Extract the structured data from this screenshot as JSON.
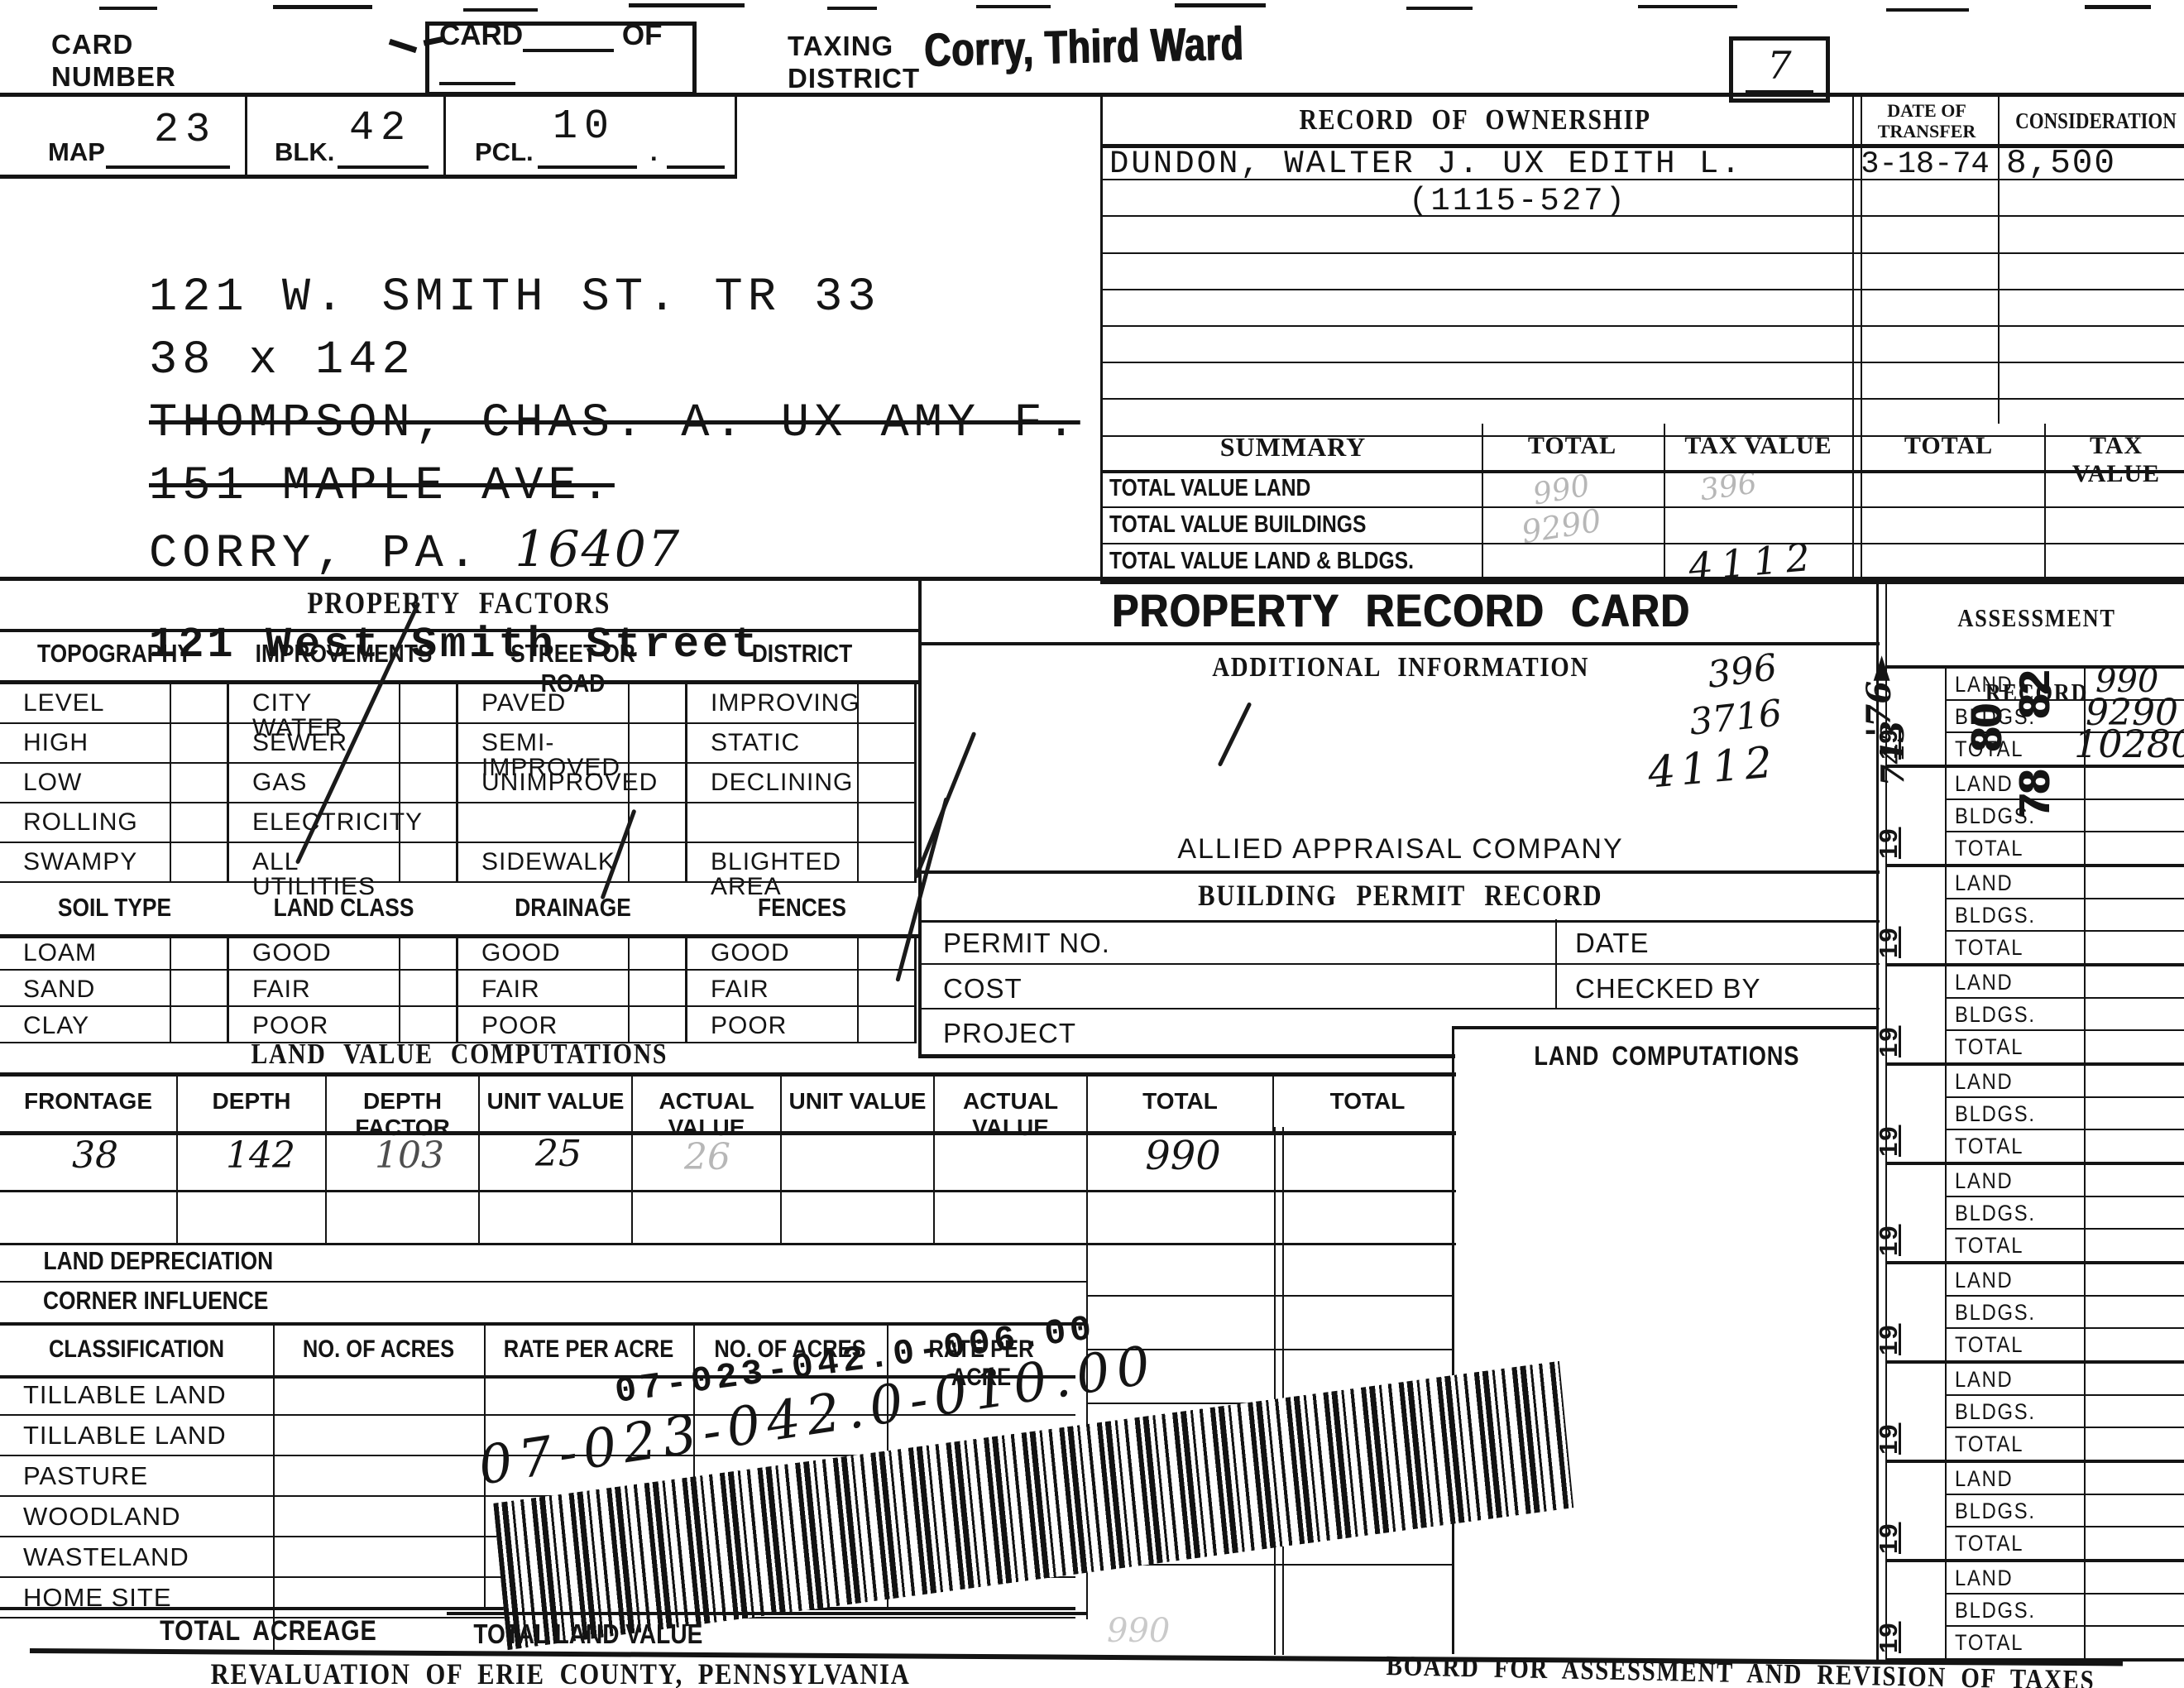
{
  "header": {
    "card_number_label": "CARD\nNUMBER",
    "card_label": "CARD",
    "of_label": "OF",
    "taxing_district_label": "TAXING\nDISTRICT",
    "taxing_district_value": "Corry, Third Ward",
    "card_number_value": "7"
  },
  "parcel": {
    "map_label": "MAP",
    "map_value": "23",
    "blk_label": "BLK.",
    "blk_value": "42",
    "pcl_label": "PCL.",
    "pcl_value": "10",
    "pcl_dot": "."
  },
  "address": {
    "line1": "121 W. SMITH ST. TR 33",
    "line2": "38 x 142",
    "line3": "THOMPSON, CHAS. A. UX AMY F.",
    "line4": "151 MAPLE AVE.",
    "line5": "CORRY, PA.",
    "zip_handwritten": "16407",
    "line6": "121 West Smith Street"
  },
  "ownership": {
    "title": "RECORD OF OWNERSHIP",
    "date_label": "DATE OF\nTRANSFER",
    "consideration_label": "CONSIDERATION",
    "book_page": "(1115-527)",
    "rows": [
      {
        "name": "DUNDON, WALTER J. UX EDITH L.",
        "date": "3-18-74",
        "consideration": "8,500"
      },
      {},
      {},
      {},
      {},
      {},
      {},
      {}
    ]
  },
  "summary": {
    "title": "SUMMARY",
    "columns": [
      "TOTAL",
      "TAX VALUE",
      "TOTAL",
      "TAX VALUE"
    ],
    "rows": [
      {
        "label": "TOTAL VALUE LAND"
      },
      {
        "label": "TOTAL VALUE BUILDINGS"
      },
      {
        "label": "TOTAL VALUE LAND & BLDGS."
      }
    ],
    "faint_land_total": "990",
    "faint_land_tax": "396",
    "faint_bldgs_total": "9290",
    "hand_total_tax": "4112"
  },
  "property_factors": {
    "title": "PROPERTY FACTORS",
    "columns": [
      {
        "header": "TOPOGRAPHY",
        "items": [
          "LEVEL",
          "HIGH",
          "LOW",
          "ROLLING",
          "SWAMPY"
        ]
      },
      {
        "header": "IMPROVEMENTS",
        "items": [
          "CITY WATER",
          "SEWER",
          "GAS",
          "ELECTRICITY",
          "ALL UTILITIES"
        ]
      },
      {
        "header": "STREET OR ROAD",
        "items": [
          "PAVED",
          "SEMI-\nIMPROVED",
          "UNIMPROVED",
          "",
          "SIDEWALK"
        ]
      },
      {
        "header": "DISTRICT",
        "items": [
          "IMPROVING",
          "STATIC",
          "DECLINING",
          "",
          "BLIGHTED\nAREA"
        ]
      }
    ]
  },
  "soil": {
    "columns": [
      {
        "header": "SOIL TYPE",
        "items": [
          "LOAM",
          "SAND",
          "CLAY"
        ]
      },
      {
        "header": "LAND CLASS",
        "items": [
          "GOOD",
          "FAIR",
          "POOR"
        ]
      },
      {
        "header": "DRAINAGE",
        "items": [
          "GOOD",
          "FAIR",
          "POOR"
        ]
      },
      {
        "header": "FENCES",
        "items": [
          "GOOD",
          "FAIR",
          "POOR"
        ]
      }
    ]
  },
  "record_card": {
    "title": "PROPERTY RECORD CARD",
    "additional_info_label": "ADDITIONAL INFORMATION",
    "company": "ALLIED APPRAISAL COMPANY",
    "hand_values": [
      "396",
      "3716",
      "4112"
    ]
  },
  "building_permit": {
    "title": "BUILDING PERMIT RECORD",
    "permit_no_label": "PERMIT NO.",
    "date_label": "DATE",
    "cost_label": "COST",
    "checked_by_label": "CHECKED BY",
    "project_label": "PROJECT"
  },
  "land_value": {
    "title": "LAND VALUE COMPUTATIONS",
    "headers": [
      "FRONTAGE",
      "DEPTH",
      "DEPTH FACTOR",
      "UNIT VALUE",
      "ACTUAL VALUE",
      "UNIT VALUE",
      "ACTUAL VALUE",
      "TOTAL",
      "TOTAL"
    ],
    "frontage": "38",
    "depth": "142",
    "depth_factor": "103",
    "unit_value": "25",
    "actual_value_faint": "26",
    "total": "990",
    "land_depreciation_label": "LAND DEPRECIATION",
    "corner_influence_label": "CORNER INFLUENCE",
    "total_land_value_label": "TOTAL LAND VALUE",
    "total_land_value_faint": "990"
  },
  "classification": {
    "header": "CLASSIFICATION",
    "columns": [
      "NO. OF ACRES",
      "RATE PER ACRE",
      "NO. OF ACRES",
      "RATE PER ACRE"
    ],
    "rows": [
      "TILLABLE LAND",
      "TILLABLE LAND",
      "PASTURE",
      "WOODLAND",
      "WASTELAND",
      "HOME SITE"
    ],
    "total_acreage_label": "TOTAL ACREAGE"
  },
  "land_computations": {
    "title": "LAND COMPUTATIONS"
  },
  "barcode": {
    "printed_number": "07-023-042.0-006.00",
    "handwritten_number": "07-023-042.0-010.00"
  },
  "assessment": {
    "title": "ASSESSMENT RECORD",
    "year_prefix": "19",
    "row_labels": [
      "LAND",
      "BLDGS.",
      "TOTAL"
    ],
    "margin_notes": [
      "'76►",
      "743"
    ],
    "groups": [
      {
        "land": "990",
        "bldgs": "9290",
        "total": "10280",
        "stamp": "82",
        "stamp2": "80"
      },
      {
        "stamp": "78"
      },
      {},
      {},
      {},
      {},
      {},
      {},
      {},
      {}
    ]
  },
  "footer": {
    "left": "REVALUATION OF ERIE COUNTY, PENNSYLVANIA",
    "right": "BOARD FOR ASSESSMENT AND REVISION OF TAXES"
  }
}
